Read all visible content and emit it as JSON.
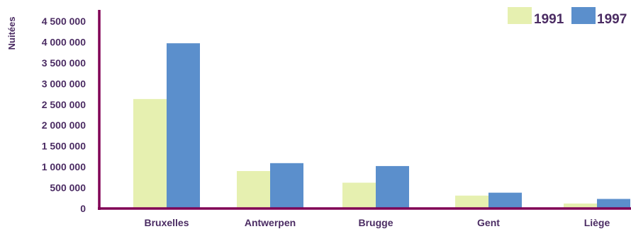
{
  "chart_data": {
    "type": "bar",
    "ylabel": "Nuitées",
    "categories": [
      "Bruxelles",
      "Antwerpen",
      "Brugge",
      "Gent",
      "Liège"
    ],
    "series": [
      {
        "name": "1991",
        "color": "#e6f0b0",
        "values": [
          2630000,
          900000,
          620000,
          310000,
          120000
        ]
      },
      {
        "name": "1997",
        "color": "#5b8fcc",
        "values": [
          3970000,
          1090000,
          1020000,
          380000,
          230000
        ]
      }
    ],
    "ylim": [
      0,
      4500000
    ],
    "yticks": [
      0,
      500000,
      1000000,
      1500000,
      2000000,
      2500000,
      3000000,
      3500000,
      4000000,
      4500000
    ],
    "ytick_labels": [
      "0",
      "500 000",
      "1 000 000",
      "1 500 000",
      "2 000 000",
      "2 500 000",
      "3 000 000",
      "3 500 000",
      "4 000 000",
      "4 500 000"
    ],
    "legend_position": "top-right",
    "grid": false,
    "axis_color": "#800055"
  }
}
